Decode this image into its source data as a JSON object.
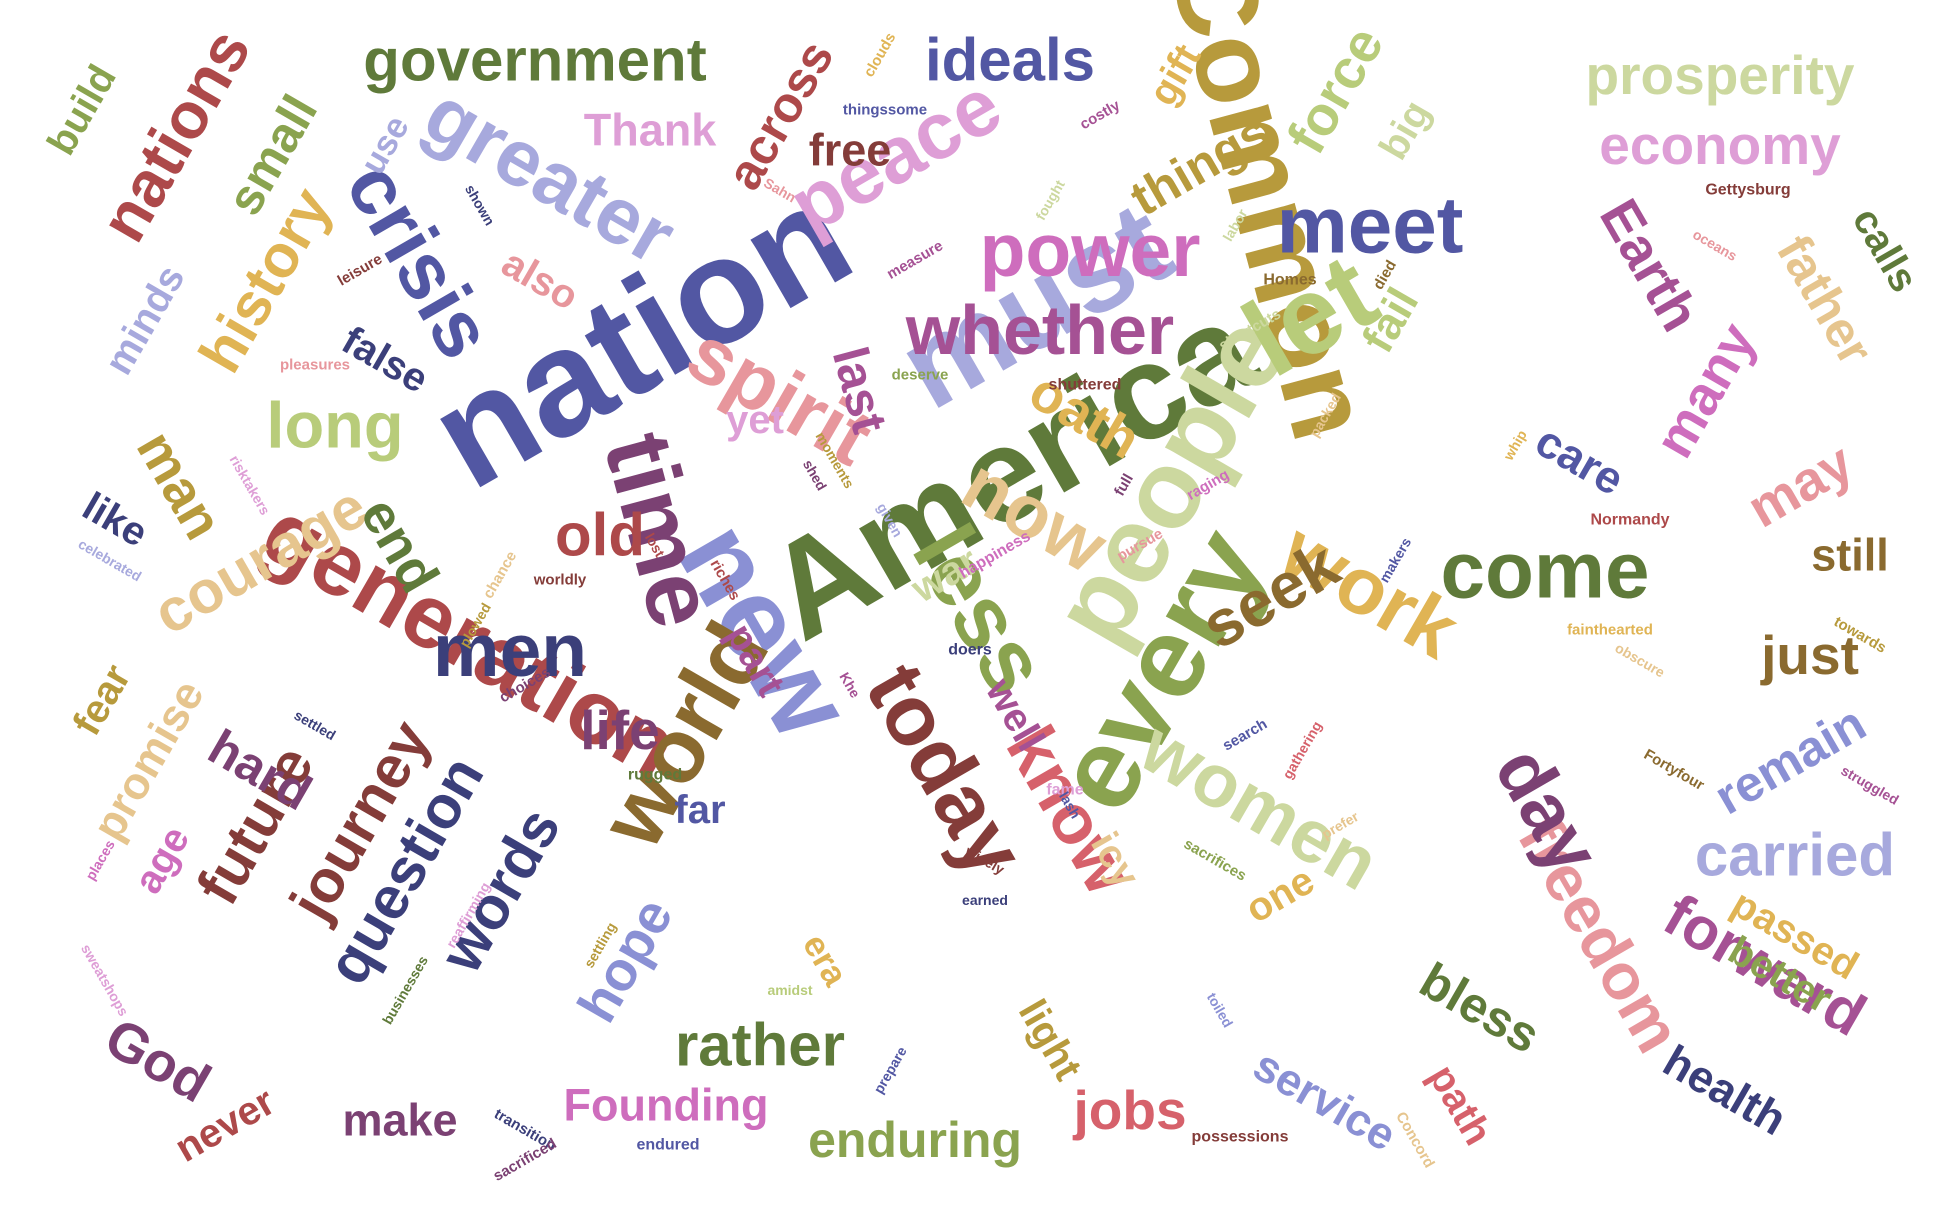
{
  "palette": {
    "navy": "#3b3f7a",
    "indigo": "#5257a3",
    "periwinkle": "#8a90d4",
    "lavender": "#a7a9dd",
    "olive": "#5f7a3a",
    "moss": "#8aa34f",
    "lime": "#b8cc7a",
    "pale_green": "#ccd89f",
    "ochre": "#b79a3c",
    "gold": "#e0b454",
    "sand": "#e6c58e",
    "brown": "#8a6a2f",
    "maroon": "#843c39",
    "red": "#ad494a",
    "rose": "#d6616b",
    "pink": "#e7969c",
    "plum": "#7b4173",
    "magenta": "#a55194",
    "orchid": "#ce6dbd",
    "light_orchid": "#de9ed6"
  },
  "words": [
    {
      "text": "nation",
      "color": "indigo"
    },
    {
      "text": "America",
      "color": "olive"
    },
    {
      "text": "must",
      "color": "lavender"
    },
    {
      "text": "Common",
      "color": "ochre"
    },
    {
      "text": "new",
      "color": "periwinkle"
    },
    {
      "text": "every",
      "color": "moss"
    },
    {
      "text": "people",
      "color": "pale_green"
    },
    {
      "text": "let",
      "color": "lime"
    },
    {
      "text": "time",
      "color": "plum"
    },
    {
      "text": "generation",
      "color": "red"
    },
    {
      "text": "world",
      "color": "brown"
    },
    {
      "text": "less",
      "color": "moss"
    },
    {
      "text": "spirit",
      "color": "pink"
    },
    {
      "text": "crisis",
      "color": "indigo"
    },
    {
      "text": "greater",
      "color": "lavender"
    },
    {
      "text": "peace",
      "color": "light_orchid"
    },
    {
      "text": "today",
      "color": "maroon"
    },
    {
      "text": "work",
      "color": "gold"
    },
    {
      "text": "know",
      "color": "rose"
    },
    {
      "text": "whether",
      "color": "magenta"
    },
    {
      "text": "women",
      "color": "pale_green"
    },
    {
      "text": "now",
      "color": "sand"
    },
    {
      "text": "come",
      "color": "olive"
    },
    {
      "text": "power",
      "color": "orchid"
    },
    {
      "text": "meet",
      "color": "indigo"
    },
    {
      "text": "freedom",
      "color": "pink"
    },
    {
      "text": "day",
      "color": "plum"
    },
    {
      "text": "government",
      "color": "olive"
    },
    {
      "text": "prosperity",
      "color": "pale_green"
    },
    {
      "text": "economy",
      "color": "light_orchid"
    },
    {
      "text": "ideals",
      "color": "indigo"
    },
    {
      "text": "men",
      "color": "navy"
    },
    {
      "text": "question",
      "color": "navy"
    },
    {
      "text": "words",
      "color": "navy"
    },
    {
      "text": "journey",
      "color": "maroon"
    },
    {
      "text": "future",
      "color": "maroon"
    },
    {
      "text": "courage",
      "color": "sand"
    },
    {
      "text": "history",
      "color": "gold"
    },
    {
      "text": "long",
      "color": "lime"
    },
    {
      "text": "nations",
      "color": "red"
    },
    {
      "text": "seek",
      "color": "brown"
    },
    {
      "text": "forward",
      "color": "magenta"
    },
    {
      "text": "carried",
      "color": "lavender"
    },
    {
      "text": "rather",
      "color": "olive"
    },
    {
      "text": "jobs",
      "color": "rose"
    },
    {
      "text": "enduring",
      "color": "moss"
    },
    {
      "text": "Founding",
      "color": "orchid"
    },
    {
      "text": "force",
      "color": "lime"
    },
    {
      "text": "things",
      "color": "ochre"
    },
    {
      "text": "oath",
      "color": "gold"
    },
    {
      "text": "Earth",
      "color": "magenta"
    },
    {
      "text": "many",
      "color": "orchid"
    },
    {
      "text": "father",
      "color": "sand"
    },
    {
      "text": "small",
      "color": "moss"
    },
    {
      "text": "end",
      "color": "olive"
    },
    {
      "text": "old",
      "color": "red"
    },
    {
      "text": "just",
      "color": "brown"
    },
    {
      "text": "remain",
      "color": "periwinkle"
    },
    {
      "text": "hard",
      "color": "plum"
    },
    {
      "text": "life",
      "color": "plum"
    },
    {
      "text": "may",
      "color": "pink"
    },
    {
      "text": "man",
      "color": "ochre"
    },
    {
      "text": "hope",
      "color": "periwinkle"
    },
    {
      "text": "God",
      "color": "plum"
    },
    {
      "text": "health",
      "color": "navy"
    },
    {
      "text": "service",
      "color": "periwinkle"
    },
    {
      "text": "bless",
      "color": "olive"
    },
    {
      "text": "passed",
      "color": "gold"
    },
    {
      "text": "better",
      "color": "moss"
    },
    {
      "text": "across",
      "color": "red"
    },
    {
      "text": "last",
      "color": "magenta"
    },
    {
      "text": "false",
      "color": "navy"
    },
    {
      "text": "also",
      "color": "pink"
    },
    {
      "text": "light",
      "color": "ochre"
    },
    {
      "text": "make",
      "color": "plum"
    },
    {
      "text": "never",
      "color": "red"
    },
    {
      "text": "age",
      "color": "orchid"
    },
    {
      "text": "promise",
      "color": "sand"
    },
    {
      "text": "fear",
      "color": "ochre"
    },
    {
      "text": "like",
      "color": "navy"
    },
    {
      "text": "minds",
      "color": "lavender"
    },
    {
      "text": "build",
      "color": "moss"
    },
    {
      "text": "Thank",
      "color": "light_orchid"
    },
    {
      "text": "free",
      "color": "maroon"
    },
    {
      "text": "fail",
      "color": "lime"
    },
    {
      "text": "care",
      "color": "indigo"
    },
    {
      "text": "still",
      "color": "brown"
    },
    {
      "text": "calls",
      "color": "olive"
    },
    {
      "text": "big",
      "color": "pale_green"
    },
    {
      "text": "gift",
      "color": "gold"
    },
    {
      "text": "use",
      "color": "lavender"
    },
    {
      "text": "yet",
      "color": "light_orchid"
    },
    {
      "text": "war",
      "color": "pale_green"
    },
    {
      "text": "part",
      "color": "magenta"
    },
    {
      "text": "far",
      "color": "indigo"
    },
    {
      "text": "well",
      "color": "magenta"
    },
    {
      "text": "one",
      "color": "gold"
    },
    {
      "text": "icy",
      "color": "sand"
    },
    {
      "text": "era",
      "color": "gold"
    },
    {
      "text": "path",
      "color": "rose"
    },
    {
      "text": "clouds",
      "color": "gold"
    },
    {
      "text": "thingssome",
      "color": "indigo"
    },
    {
      "text": "costly",
      "color": "magenta"
    },
    {
      "text": "shown",
      "color": "navy"
    },
    {
      "text": "fought",
      "color": "pale_green"
    },
    {
      "text": "labor",
      "color": "pale_green"
    },
    {
      "text": "Gettysburg",
      "color": "maroon"
    },
    {
      "text": "oceans",
      "color": "pink"
    },
    {
      "text": "Sahn",
      "color": "pink"
    },
    {
      "text": "leisure",
      "color": "maroon"
    },
    {
      "text": "measure",
      "color": "magenta"
    },
    {
      "text": "Homes",
      "color": "brown"
    },
    {
      "text": "died",
      "color": "brown"
    },
    {
      "text": "shortcuts",
      "color": "pale_green"
    },
    {
      "text": "pleasures",
      "color": "pink"
    },
    {
      "text": "deserve",
      "color": "moss"
    },
    {
      "text": "shuttered",
      "color": "maroon"
    },
    {
      "text": "packed",
      "color": "sand"
    },
    {
      "text": "whip",
      "color": "gold"
    },
    {
      "text": "risktakers",
      "color": "light_orchid"
    },
    {
      "text": "moments",
      "color": "ochre"
    },
    {
      "text": "shed",
      "color": "plum"
    },
    {
      "text": "full",
      "color": "plum"
    },
    {
      "text": "raging",
      "color": "orchid"
    },
    {
      "text": "Normandy",
      "color": "red"
    },
    {
      "text": "celebrated",
      "color": "lavender"
    },
    {
      "text": "given",
      "color": "lavender"
    },
    {
      "text": "lost",
      "color": "red"
    },
    {
      "text": "happiness",
      "color": "orchid"
    },
    {
      "text": "pursue",
      "color": "pink"
    },
    {
      "text": "makers",
      "color": "indigo"
    },
    {
      "text": "chance",
      "color": "sand"
    },
    {
      "text": "worldly",
      "color": "maroon"
    },
    {
      "text": "riches",
      "color": "red"
    },
    {
      "text": "plowed",
      "color": "ochre"
    },
    {
      "text": "fainthearted",
      "color": "gold"
    },
    {
      "text": "towards",
      "color": "ochre"
    },
    {
      "text": "obscure",
      "color": "sand"
    },
    {
      "text": "doers",
      "color": "navy"
    },
    {
      "text": "search",
      "color": "indigo"
    },
    {
      "text": "gathering",
      "color": "rose"
    },
    {
      "text": "choices",
      "color": "plum"
    },
    {
      "text": "settled",
      "color": "navy"
    },
    {
      "text": "Khe",
      "color": "magenta"
    },
    {
      "text": "fame",
      "color": "light_orchid"
    },
    {
      "text": "rugged",
      "color": "olive"
    },
    {
      "text": "Fortyfour",
      "color": "brown"
    },
    {
      "text": "struggled",
      "color": "magenta"
    },
    {
      "text": "prefer",
      "color": "sand"
    },
    {
      "text": "lash",
      "color": "indigo"
    },
    {
      "text": "sacrifices",
      "color": "moss"
    },
    {
      "text": "places",
      "color": "orchid"
    },
    {
      "text": "reaffirming",
      "color": "light_orchid"
    },
    {
      "text": "wisely",
      "color": "maroon"
    },
    {
      "text": "earned",
      "color": "navy"
    },
    {
      "text": "sweatshops",
      "color": "light_orchid"
    },
    {
      "text": "settling",
      "color": "ochre"
    },
    {
      "text": "businesses",
      "color": "olive"
    },
    {
      "text": "amidst",
      "color": "lime"
    },
    {
      "text": "toiled",
      "color": "periwinkle"
    },
    {
      "text": "prepare",
      "color": "indigo"
    },
    {
      "text": "transition",
      "color": "navy"
    },
    {
      "text": "sacrificed",
      "color": "plum"
    },
    {
      "text": "endured",
      "color": "indigo"
    },
    {
      "text": "possessions",
      "color": "maroon"
    },
    {
      "text": "Concord",
      "color": "sand"
    }
  ]
}
